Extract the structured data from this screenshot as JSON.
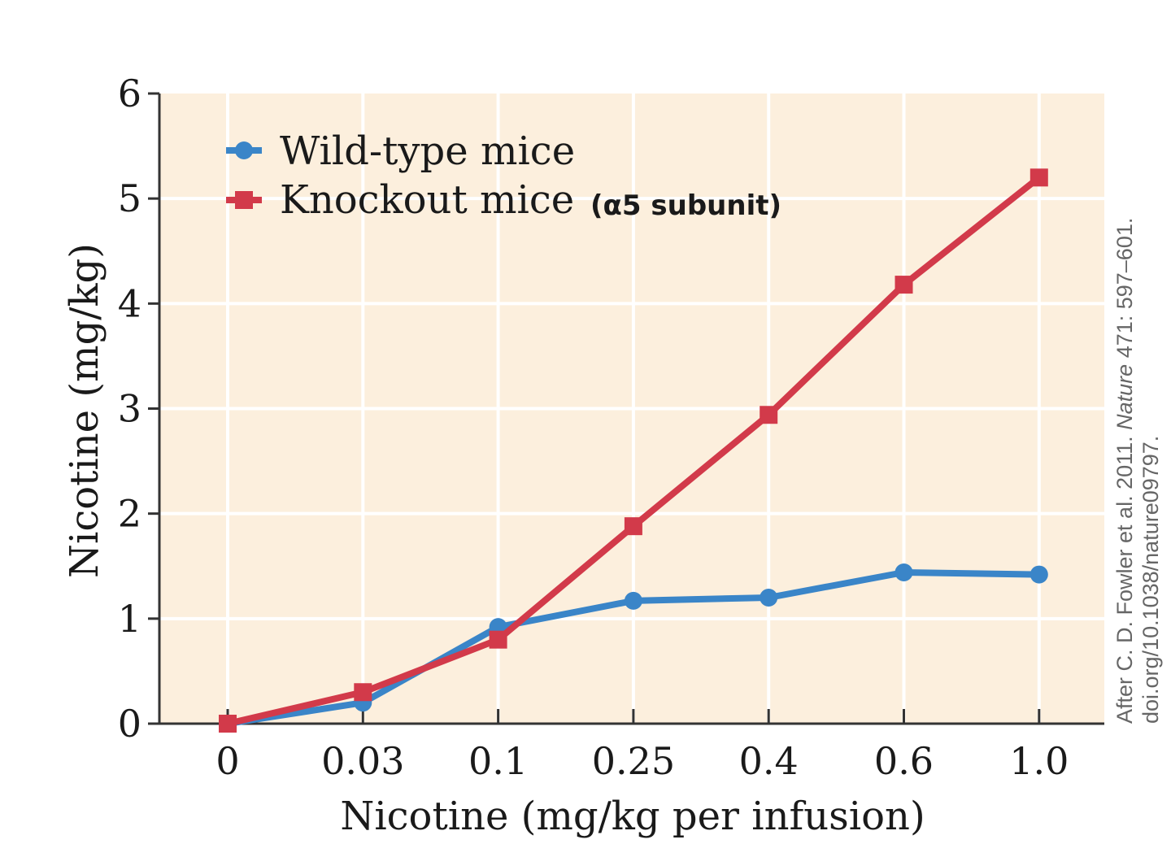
{
  "chart_data": {
    "type": "line",
    "categories": [
      "0",
      "0.03",
      "0.1",
      "0.25",
      "0.4",
      "0.6",
      "1.0"
    ],
    "series": [
      {
        "name": "Wild-type mice",
        "values": [
          0,
          0.2,
          0.92,
          1.17,
          1.2,
          1.44,
          1.42
        ],
        "color": "#3a85c8",
        "marker": "circle"
      },
      {
        "name": "Knockout mice",
        "values": [
          0,
          0.3,
          0.8,
          1.88,
          2.94,
          4.18,
          5.2
        ],
        "color": "#d23a4a",
        "marker": "square"
      }
    ],
    "legend_note": "(α5 subunit)",
    "xlabel": "Nicotine (mg/kg per infusion)",
    "ylabel": "Nicotine (mg/kg)",
    "ylim": [
      0,
      6
    ],
    "yticks": [
      "0",
      "1",
      "2",
      "3",
      "4",
      "5",
      "6"
    ],
    "grid": true,
    "legend_position": "top-left",
    "plot_background": "#fcefdd",
    "grid_color": "#ffffff",
    "credit": {
      "line1_prefix": "After C. D. Fowler et al. 2011. ",
      "line1_journal": "Nature",
      "line1_suffix": " 471: 597–601.",
      "line2": "doi.org/10.1038/nature09797."
    }
  }
}
